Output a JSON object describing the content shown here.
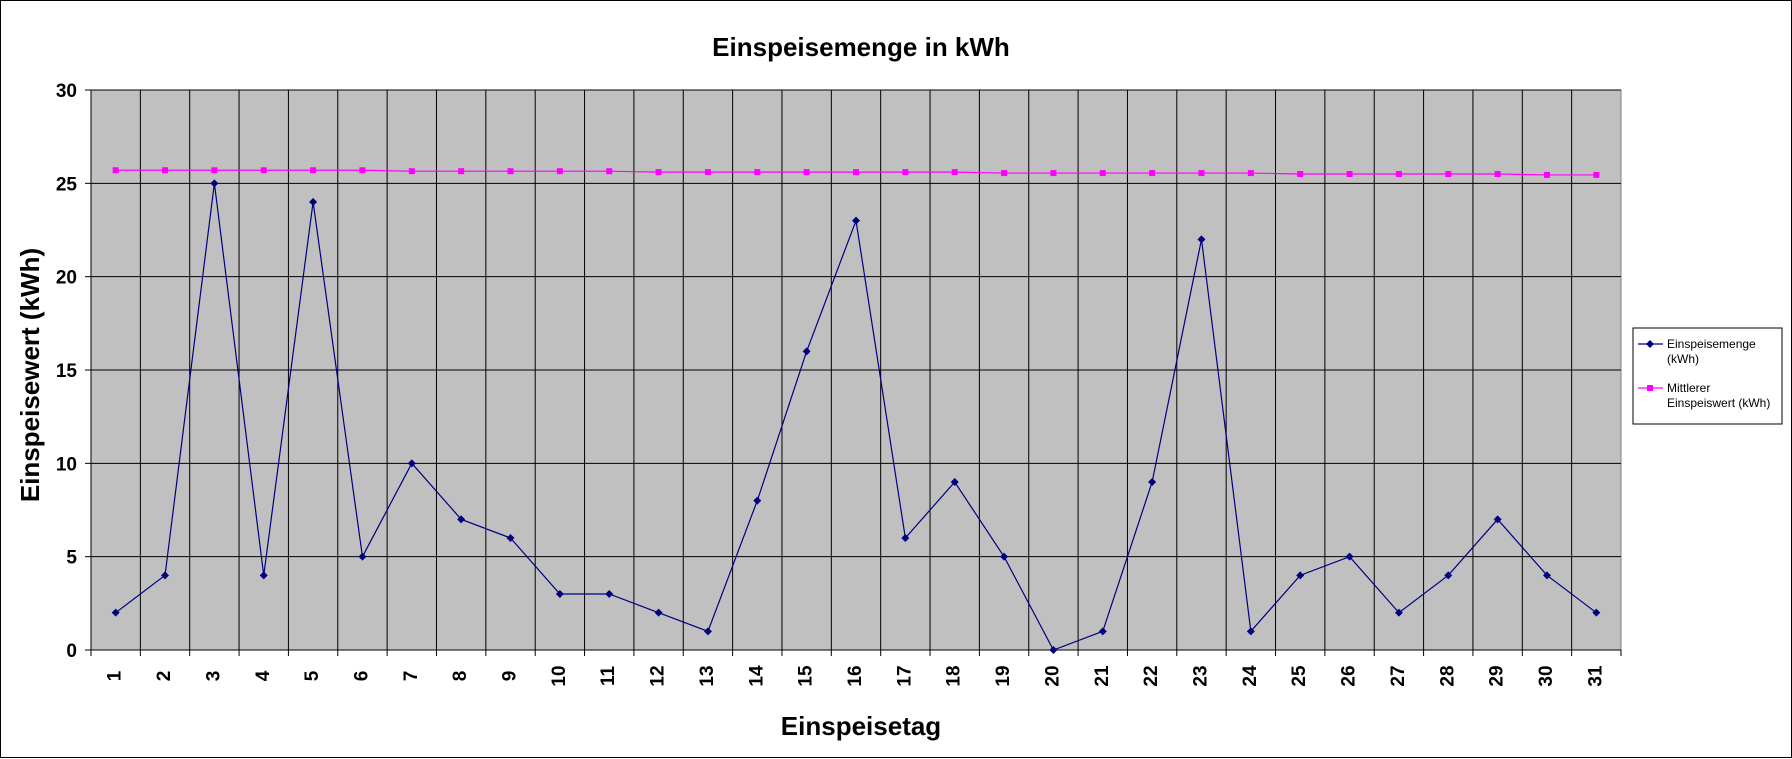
{
  "chart_data": {
    "type": "line",
    "title": "Einspeisemenge in kWh",
    "xlabel": "Einspeisetag",
    "ylabel": "Einspeisewert  (kWh)",
    "ylim": [
      0,
      30
    ],
    "yticks": [
      "0",
      "5",
      "10",
      "15",
      "20",
      "25",
      "30"
    ],
    "categories": [
      "1",
      "2",
      "3",
      "4",
      "5",
      "6",
      "7",
      "8",
      "9",
      "10",
      "11",
      "12",
      "13",
      "14",
      "15",
      "16",
      "17",
      "18",
      "19",
      "20",
      "21",
      "22",
      "23",
      "24",
      "25",
      "26",
      "27",
      "28",
      "29",
      "30",
      "31"
    ],
    "grid": true,
    "plot_background": "#c0c0c0",
    "legend_position": "right",
    "series": [
      {
        "name": "Einspeisemenge (kWh)",
        "legend_lines": [
          "Einspeisemenge",
          "(kWh)"
        ],
        "color": "#000080",
        "marker": "diamond",
        "values": [
          2,
          4,
          25,
          4,
          24,
          5,
          10,
          7,
          6,
          3,
          3,
          2,
          1,
          8,
          16,
          23,
          6,
          9,
          5,
          0,
          1,
          9,
          22,
          1,
          4,
          5,
          2,
          4,
          7,
          4,
          2
        ]
      },
      {
        "name": "Mittlerer Einspeiswert (kWh)",
        "legend_lines": [
          "Mittlerer",
          "Einspeiswert (kWh)"
        ],
        "color": "#ff00ff",
        "marker": "square",
        "values": [
          25.7,
          25.7,
          25.7,
          25.7,
          25.7,
          25.7,
          25.65,
          25.65,
          25.65,
          25.65,
          25.65,
          25.6,
          25.6,
          25.6,
          25.6,
          25.6,
          25.6,
          25.6,
          25.55,
          25.55,
          25.55,
          25.55,
          25.55,
          25.55,
          25.5,
          25.5,
          25.5,
          25.5,
          25.5,
          25.45,
          25.45
        ]
      }
    ]
  }
}
